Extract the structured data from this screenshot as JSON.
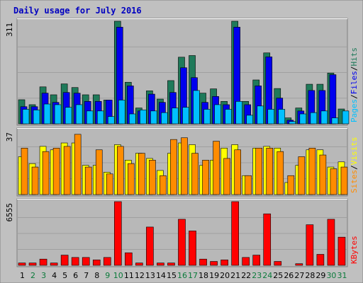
{
  "colors": {
    "frame": "#c0c0c0",
    "plot_bg": "#b8b8b8",
    "grid": "#a0a0a0",
    "title": "#0000c0",
    "hits": "#1f7a5a",
    "files": "#0000ee",
    "pages": "#00c0ff",
    "visits": "#ffff00",
    "sites": "#ff8c00",
    "kbytes": "#ff0000",
    "weekend": "#0a7a3a",
    "weekday": "#000000",
    "bar_border": "#000000"
  },
  "chart_data": {
    "type": "bar",
    "title": "Daily usage for July 2016",
    "categories": [
      "1",
      "2",
      "3",
      "4",
      "5",
      "6",
      "7",
      "8",
      "9",
      "10",
      "11",
      "12",
      "13",
      "14",
      "15",
      "16",
      "17",
      "18",
      "19",
      "20",
      "21",
      "22",
      "23",
      "24",
      "25",
      "26",
      "27",
      "28",
      "29",
      "30",
      "31"
    ],
    "weekend_days": [
      2,
      3,
      9,
      10,
      16,
      17,
      23,
      24,
      30,
      31
    ],
    "panels": [
      {
        "id": "requests",
        "ymax_label": "311",
        "ylim": [
          0,
          311
        ],
        "legend": [
          {
            "text": "Pages",
            "color_key": "pages"
          },
          {
            "text": "Files",
            "color_key": "files"
          },
          {
            "text": "Hits",
            "color_key": "hits"
          }
        ],
        "series": [
          {
            "name": "Hits",
            "color_key": "hits",
            "values": [
              73,
              58,
              112,
              88,
              121,
              110,
              88,
              88,
              72,
              311,
              126,
              48,
              100,
              75,
              131,
              202,
              207,
              93,
              106,
              68,
              311,
              68,
              133,
              215,
              107,
              18,
              48,
              120,
              120,
              154,
              45
            ]
          },
          {
            "name": "Files",
            "color_key": "files",
            "values": [
              52,
              52,
              93,
              65,
              95,
              93,
              68,
              68,
              72,
              293,
              115,
              39,
              90,
              65,
              95,
              170,
              140,
              65,
              83,
              58,
              293,
              58,
              115,
              203,
              78,
              11,
              39,
              101,
              101,
              149,
              0
            ]
          },
          {
            "name": "Pages",
            "color_key": "pages",
            "values": [
              44,
              42,
              60,
              58,
              50,
              58,
              39,
              39,
              22,
              72,
              30,
              42,
              39,
              34,
              48,
              50,
              101,
              44,
              58,
              44,
              68,
              26,
              54,
              44,
              44,
              7,
              30,
              34,
              39,
              18,
              39
            ]
          }
        ]
      },
      {
        "id": "visitors",
        "ymax_label": "37",
        "ylim": [
          0,
          37
        ],
        "legend": [
          {
            "text": "Sites",
            "color_key": "sites"
          },
          {
            "text": "Visits",
            "color_key": "visits"
          }
        ],
        "series": [
          {
            "name": "Visits",
            "color_key": "visits",
            "values": [
              22,
              18,
              28,
              26,
              30,
              30,
              17,
              17,
              13,
              29,
              20,
              24,
              21,
              14,
              24,
              30,
              29,
              17,
              20,
              27,
              29,
              11,
              27,
              28,
              27,
              7,
              17,
              26,
              26,
              16,
              19
            ]
          },
          {
            "name": "Sites",
            "color_key": "sites",
            "values": [
              27,
              16,
              25,
              27,
              28,
              35,
              16,
              26,
              12,
              28,
              18,
              24,
              20,
              11,
              32,
              33,
              24,
              20,
              31,
              21,
              26,
              11,
              27,
              27,
              25,
              11,
              22,
              27,
              23,
              15,
              16
            ]
          }
        ]
      },
      {
        "id": "volume",
        "ymax_label": "6555",
        "ylim": [
          0,
          6555
        ],
        "legend": [
          {
            "text": "KBytes",
            "color_key": "kbytes"
          }
        ],
        "series": [
          {
            "name": "KBytes",
            "color_key": "kbytes",
            "values": [
              240,
              240,
              640,
              240,
              1050,
              810,
              810,
              560,
              810,
              6555,
              1290,
              240,
              3940,
              240,
              240,
              4740,
              3540,
              640,
              400,
              560,
              6555,
              810,
              1050,
              5300,
              400,
              0,
              170,
              4180,
              1130,
              4740,
              2900
            ]
          }
        ]
      }
    ]
  }
}
